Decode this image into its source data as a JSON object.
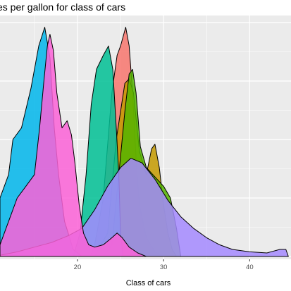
{
  "chart_data": {
    "type": "area",
    "title": "es per gallon for class of cars",
    "xlabel": "Class of cars",
    "ylabel": "",
    "xlim": [
      11,
      44.8
    ],
    "ylim": [
      0,
      1
    ],
    "x_ticks": [
      20,
      30,
      40
    ],
    "grid": true,
    "legend": "none",
    "panel_background": "#ebebeb",
    "gridline_color": "#ffffff",
    "alpha": 0.85,
    "series": [
      {
        "color": "#F8766D",
        "points": [
          [
            21.5,
            0
          ],
          [
            22,
            0.05
          ],
          [
            23,
            0.25
          ],
          [
            24,
            0.7
          ],
          [
            24.6,
            0.86
          ],
          [
            25,
            0.9
          ],
          [
            25.6,
            0.98
          ],
          [
            26,
            0.9
          ],
          [
            26.4,
            0.7
          ],
          [
            26.8,
            0.42
          ],
          [
            27.2,
            0.22
          ],
          [
            28,
            0.08
          ],
          [
            29,
            0.02
          ],
          [
            30,
            0
          ]
        ]
      },
      {
        "color": "#C49A00",
        "points": [
          [
            22,
            0
          ],
          [
            23.5,
            0.1
          ],
          [
            24.5,
            0.5
          ],
          [
            25.5,
            0.74
          ],
          [
            26,
            0.76
          ],
          [
            26.5,
            0.7
          ],
          [
            27.2,
            0.45
          ],
          [
            28,
            0.35
          ],
          [
            28.6,
            0.46
          ],
          [
            29,
            0.48
          ],
          [
            29.5,
            0.38
          ],
          [
            30,
            0.22
          ],
          [
            30.5,
            0.1
          ],
          [
            31,
            0.03
          ],
          [
            31.5,
            0
          ]
        ]
      },
      {
        "color": "#53B400",
        "points": [
          [
            23,
            0
          ],
          [
            24,
            0.05
          ],
          [
            24.8,
            0.35
          ],
          [
            25.5,
            0.62
          ],
          [
            26,
            0.78
          ],
          [
            26.4,
            0.8
          ],
          [
            26.8,
            0.7
          ],
          [
            27.3,
            0.47
          ],
          [
            28,
            0.38
          ],
          [
            29,
            0.34
          ],
          [
            30,
            0.3
          ],
          [
            30.8,
            0.25
          ],
          [
            31.5,
            0.12
          ],
          [
            32,
            0
          ]
        ]
      },
      {
        "color": "#00C094",
        "points": [
          [
            19.5,
            0
          ],
          [
            20.3,
            0.1
          ],
          [
            21,
            0.35
          ],
          [
            21.6,
            0.65
          ],
          [
            22.2,
            0.8
          ],
          [
            23,
            0.86
          ],
          [
            23.6,
            0.9
          ],
          [
            24.1,
            0.8
          ],
          [
            24.5,
            0.55
          ],
          [
            24.8,
            0.35
          ],
          [
            25,
            0.1
          ],
          [
            25.3,
            0
          ]
        ]
      },
      {
        "color": "#00B6EB",
        "points": [
          [
            11,
            0.25
          ],
          [
            12,
            0.35
          ],
          [
            12.5,
            0.5
          ],
          [
            13.5,
            0.55
          ],
          [
            14.6,
            0.72
          ],
          [
            15.5,
            0.9
          ],
          [
            16.2,
            0.98
          ],
          [
            16.8,
            0.85
          ],
          [
            17.3,
            0.55
          ],
          [
            17.8,
            0.35
          ],
          [
            18.5,
            0.15
          ],
          [
            19.5,
            0.03
          ],
          [
            20.5,
            0
          ]
        ]
      },
      {
        "color": "#A58AFF",
        "points": [
          [
            11,
            0.005
          ],
          [
            13,
            0.02
          ],
          [
            15,
            0.04
          ],
          [
            17,
            0.06
          ],
          [
            19,
            0.09
          ],
          [
            20.5,
            0.12
          ],
          [
            22,
            0.2
          ],
          [
            23.5,
            0.3
          ],
          [
            25,
            0.38
          ],
          [
            26.2,
            0.42
          ],
          [
            27.5,
            0.4
          ],
          [
            29,
            0.33
          ],
          [
            30.5,
            0.24
          ],
          [
            32,
            0.17
          ],
          [
            33.5,
            0.12
          ],
          [
            35,
            0.08
          ],
          [
            36.5,
            0.05
          ],
          [
            38,
            0.03
          ],
          [
            40,
            0.02
          ],
          [
            42,
            0.015
          ],
          [
            43.5,
            0.03
          ],
          [
            44.2,
            0.03
          ],
          [
            44.5,
            0
          ]
        ]
      },
      {
        "color": "#FB61D7",
        "points": [
          [
            11,
            0.05
          ],
          [
            12,
            0.15
          ],
          [
            13,
            0.25
          ],
          [
            14,
            0.3
          ],
          [
            15,
            0.35
          ],
          [
            15.6,
            0.55
          ],
          [
            16.1,
            0.75
          ],
          [
            16.5,
            0.9
          ],
          [
            16.8,
            0.95
          ],
          [
            17.2,
            0.88
          ],
          [
            17.6,
            0.7
          ],
          [
            18.2,
            0.55
          ],
          [
            18.8,
            0.58
          ],
          [
            19.3,
            0.52
          ],
          [
            19.7,
            0.4
          ],
          [
            20.2,
            0.22
          ],
          [
            20.7,
            0.1
          ],
          [
            21.3,
            0.05
          ],
          [
            22,
            0.04
          ],
          [
            23,
            0.05
          ],
          [
            24,
            0.08
          ],
          [
            24.6,
            0.1
          ],
          [
            25.2,
            0.08
          ],
          [
            26,
            0.04
          ],
          [
            27,
            0.015
          ],
          [
            28,
            0
          ]
        ]
      }
    ]
  }
}
